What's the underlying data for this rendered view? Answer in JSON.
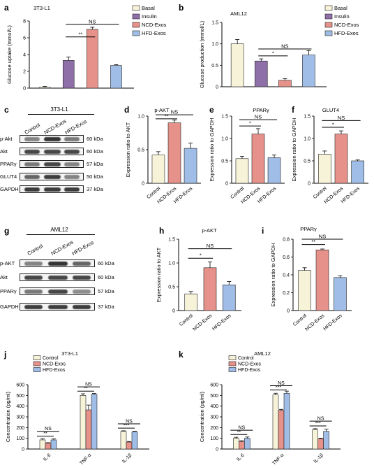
{
  "figure": {
    "colors": {
      "Basal": "#f7f3d9",
      "Insulin": "#8e6fa8",
      "NCD-Exos": "#e6918a",
      "HFD-Exos": "#9fbde6",
      "Control": "#f7f3d9"
    },
    "panels": {
      "a": "a",
      "b": "b",
      "c": "c",
      "d": "d",
      "e": "e",
      "f": "f",
      "g": "g",
      "h": "h",
      "i": "i",
      "j": "j",
      "k": "k"
    },
    "blots": {
      "c": {
        "title": "3T3-L1",
        "lanes": [
          "Control",
          "NCD-Exos",
          "HFD-Exos"
        ],
        "rows": [
          {
            "protein": "p-Akt",
            "kda": "60 kDa"
          },
          {
            "protein": "Akt",
            "kda": "60 kDa"
          },
          {
            "protein": "PPARγ",
            "kda": "57 kDa"
          },
          {
            "protein": "GLUT4",
            "kda": "50 kDa"
          },
          {
            "protein": "GAPDH",
            "kda": "37 kDa"
          }
        ]
      },
      "g": {
        "title": "AML12",
        "lanes": [
          "Control",
          "NCD-Exos",
          "HFD-Exos"
        ],
        "rows": [
          {
            "protein": "p-AKT",
            "kda": "60 kDa"
          },
          {
            "protein": "Akt",
            "kda": "60 kDa"
          },
          {
            "protein": "PPARγ",
            "kda": "57 kDa"
          },
          {
            "protein": "GAPDH",
            "kda": "37 kDa"
          }
        ]
      }
    }
  },
  "chart_data": [
    {
      "id": "a",
      "type": "bar",
      "title": "3T3-L1",
      "ylabel": "Glucose uptake (mmol/L)",
      "ylim": [
        0,
        8
      ],
      "yticks": [
        0,
        2,
        4,
        6,
        8
      ],
      "categories": [
        "Basal",
        "Insulin",
        "NCD-Exos",
        "HFD-Exos"
      ],
      "values": [
        0.1,
        3.3,
        7.0,
        2.7
      ],
      "errors": [
        0.1,
        0.4,
        0.25,
        0.1
      ],
      "legend": [
        "Basal",
        "Insulin",
        "NCD-Exos",
        "HFD-Exos"
      ],
      "legend_position": "right",
      "annotations": [
        {
          "from": 1,
          "to": 2,
          "text": "**",
          "level": 6.1
        },
        {
          "from": 1,
          "to": 3,
          "text": "NS",
          "level": 7.6
        }
      ]
    },
    {
      "id": "b",
      "type": "bar",
      "title": "AML12",
      "ylabel": "Glucose production (mmol/L)",
      "ylim": [
        0,
        1.5
      ],
      "yticks": [
        0,
        0.5,
        1.0,
        1.5
      ],
      "ytickLabels": [
        "0",
        "0.5",
        "1.0",
        "1.5"
      ],
      "categories": [
        "Basal",
        "Insulin",
        "NCD-Exos",
        "HFD-Exos"
      ],
      "values": [
        1.0,
        0.6,
        0.15,
        0.74
      ],
      "errors": [
        0.1,
        0.05,
        0.04,
        0.1
      ],
      "legend": [
        "Basal",
        "Insulin",
        "NCD-Exos",
        "HFD-Exos"
      ],
      "legend_position": "right",
      "annotations": [
        {
          "from": 1,
          "to": 2,
          "text": "*",
          "level": 0.72
        },
        {
          "from": 1,
          "to": 3,
          "text": "NS",
          "level": 0.88
        }
      ]
    },
    {
      "id": "d",
      "type": "bar",
      "title": "p-AKT",
      "ylabel": "Expression ratio to AKT",
      "ylim": [
        0,
        1.0
      ],
      "yticks": [
        0,
        0.5,
        1.0
      ],
      "ytickLabels": [
        "0",
        "0.5",
        "1.0"
      ],
      "categories": [
        "Control",
        "NCD-Exos",
        "HFD-Exos"
      ],
      "values": [
        0.42,
        0.9,
        0.52
      ],
      "errors": [
        0.05,
        0.04,
        0.08
      ],
      "annotations": [
        {
          "from": 0,
          "to": 1,
          "text": "**",
          "level": 0.96
        },
        {
          "from": 0,
          "to": 2,
          "text": "NS",
          "level": 1.02
        }
      ]
    },
    {
      "id": "e",
      "type": "bar",
      "title": "PPARγ",
      "ylabel": "Expression ratio to GAPDH",
      "ylim": [
        0,
        1.5
      ],
      "yticks": [
        0,
        0.5,
        1.0,
        1.5
      ],
      "ytickLabels": [
        "0",
        "0.5",
        "1.0",
        "1.5"
      ],
      "categories": [
        "Control",
        "NCD-Exos",
        "HFD-Exos"
      ],
      "values": [
        0.55,
        1.1,
        0.57
      ],
      "errors": [
        0.05,
        0.12,
        0.06
      ],
      "annotations": [
        {
          "from": 0,
          "to": 1,
          "text": "*",
          "level": 1.28
        },
        {
          "from": 0,
          "to": 2,
          "text": "NS",
          "level": 1.42
        }
      ]
    },
    {
      "id": "f",
      "type": "bar",
      "title": "GLUT4",
      "ylabel": "Expression ratio to GAPDH",
      "ylim": [
        0,
        1.5
      ],
      "yticks": [
        0,
        0.5,
        1.0,
        1.5
      ],
      "ytickLabels": [
        "0",
        "0.5",
        "1.0",
        "1.5"
      ],
      "categories": [
        "Control",
        "NCD-Exos",
        "HFD-Exos"
      ],
      "values": [
        0.65,
        1.1,
        0.5
      ],
      "errors": [
        0.07,
        0.07,
        0.02
      ],
      "annotations": [
        {
          "from": 0,
          "to": 1,
          "text": "*",
          "level": 1.25
        },
        {
          "from": 0,
          "to": 2,
          "text": "NS",
          "level": 1.4
        }
      ]
    },
    {
      "id": "h",
      "type": "bar",
      "title": "p-AKT",
      "ylabel": "Expression ratio to AKT",
      "ylim": [
        0,
        1.5
      ],
      "yticks": [
        0,
        0.5,
        1.0,
        1.5
      ],
      "ytickLabels": [
        "0",
        "0.5",
        "1.0",
        "1.5"
      ],
      "categories": [
        "Control",
        "NCD-Exos",
        "HFD-Exos"
      ],
      "values": [
        0.35,
        0.9,
        0.54
      ],
      "errors": [
        0.05,
        0.12,
        0.07
      ],
      "annotations": [
        {
          "from": 0,
          "to": 1,
          "text": "*",
          "level": 1.1
        },
        {
          "from": 0,
          "to": 2,
          "text": "NS",
          "level": 1.3
        }
      ]
    },
    {
      "id": "i",
      "type": "bar",
      "title": "PPARγ",
      "ylabel": "Expression ratio to GAPDH",
      "ylim": [
        0,
        0.8
      ],
      "yticks": [
        0,
        0.2,
        0.4,
        0.6,
        0.8
      ],
      "ytickLabels": [
        "0",
        "0.2",
        "0.4",
        "0.6",
        "0.8"
      ],
      "categories": [
        "Control",
        "NCD-Exos",
        "HFD-Exos"
      ],
      "values": [
        0.45,
        0.68,
        0.37
      ],
      "errors": [
        0.03,
        0.01,
        0.02
      ],
      "annotations": [
        {
          "from": 0,
          "to": 1,
          "text": "**",
          "level": 0.74
        },
        {
          "from": 0,
          "to": 2,
          "text": "NS",
          "level": 0.8
        }
      ]
    },
    {
      "id": "j",
      "type": "grouped-bar",
      "title": "3T3-L1",
      "ylabel": "Concentration (pg/ml)",
      "ylim": [
        0,
        600
      ],
      "yticks": [
        0,
        100,
        200,
        300,
        400,
        500,
        600
      ],
      "categories": [
        "IL-6",
        "TNF-α",
        "IL-1β"
      ],
      "series": [
        {
          "name": "Control",
          "values": [
            85,
            500,
            165
          ],
          "errors": [
            12,
            15,
            5
          ]
        },
        {
          "name": "NCD-Exos",
          "values": [
            55,
            365,
            65
          ],
          "errors": [
            4,
            45,
            5
          ]
        },
        {
          "name": "HFD-Exos",
          "values": [
            85,
            510,
            160
          ],
          "errors": [
            10,
            8,
            5
          ]
        }
      ],
      "legend_position": "top",
      "annotations": [
        {
          "group": 0,
          "from": 0,
          "to": 1,
          "text": "**",
          "level": 120
        },
        {
          "group": 0,
          "from": 0,
          "to": 2,
          "text": "NS",
          "level": 165
        },
        {
          "group": 1,
          "from": 0,
          "to": 1,
          "text": "**",
          "level": 540
        },
        {
          "group": 1,
          "from": 0,
          "to": 2,
          "text": "NS",
          "level": 580
        },
        {
          "group": 2,
          "from": 0,
          "to": 1,
          "text": "***",
          "level": 195
        },
        {
          "group": 2,
          "from": 0,
          "to": 2,
          "text": "NS",
          "level": 235
        }
      ]
    },
    {
      "id": "k",
      "type": "grouped-bar",
      "title": "AML12",
      "ylabel": "Concentration (pg/ml)",
      "ylim": [
        0,
        600
      ],
      "yticks": [
        0,
        100,
        200,
        300,
        400,
        500,
        600
      ],
      "categories": [
        "IL-6",
        "TNF-α",
        "IL-1β"
      ],
      "series": [
        {
          "name": "Control",
          "values": [
            100,
            505,
            180
          ],
          "errors": [
            10,
            15,
            10
          ]
        },
        {
          "name": "NCD-Exos",
          "values": [
            70,
            360,
            95
          ],
          "errors": [
            8,
            10,
            6
          ]
        },
        {
          "name": "HFD-Exos",
          "values": [
            100,
            520,
            165
          ],
          "errors": [
            12,
            20,
            20
          ]
        }
      ],
      "legend_position": "top",
      "annotations": [
        {
          "group": 0,
          "from": 0,
          "to": 1,
          "text": "**",
          "level": 135
        },
        {
          "group": 0,
          "from": 0,
          "to": 2,
          "text": "NS",
          "level": 175
        },
        {
          "group": 1,
          "from": 0,
          "to": 1,
          "text": "***",
          "level": 550
        },
        {
          "group": 1,
          "from": 0,
          "to": 2,
          "text": "NS",
          "level": 590
        },
        {
          "group": 2,
          "from": 0,
          "to": 1,
          "text": "***",
          "level": 215
        },
        {
          "group": 2,
          "from": 0,
          "to": 2,
          "text": "NS",
          "level": 260
        }
      ]
    }
  ]
}
